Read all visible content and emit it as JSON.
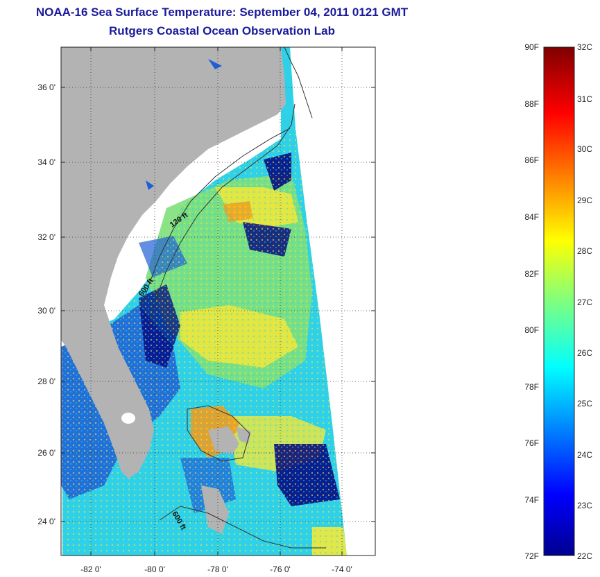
{
  "title": {
    "line1": "NOAA-16 Sea Surface Temperature:  September 04, 2011 0121 GMT",
    "line2": "Rutgers Coastal Ocean Observation Lab"
  },
  "axes": {
    "lat_ticks": [
      "36 0'",
      "34 0'",
      "32 0'",
      "30 0'",
      "28 0'",
      "26 0'",
      "24 0'"
    ],
    "lon_ticks": [
      "-82 0'",
      "-80 0'",
      "-78 0'",
      "-76 0'",
      "-74 0'"
    ],
    "lat_range": [
      23.0,
      37.0
    ],
    "lon_range": [
      -83.0,
      -73.3
    ],
    "grid": "dotted"
  },
  "contours": {
    "label_120": "120 ft",
    "label_600_north": "600 ft",
    "label_600_south": "600 ft"
  },
  "colorbar": {
    "fahrenheit": [
      "90F",
      "88F",
      "86F",
      "84F",
      "82F",
      "80F",
      "78F",
      "76F",
      "74F",
      "72F"
    ],
    "celsius": [
      "32C",
      "31C",
      "30C",
      "29C",
      "28C",
      "27C",
      "26C",
      "25C",
      "24C",
      "23C",
      "22C"
    ],
    "f_range": [
      72,
      90
    ],
    "c_range": [
      22,
      32
    ],
    "colormap": "jet"
  },
  "colors": {
    "land": "#b3b3b3",
    "title": "#1a1a9a",
    "cold": "#000080",
    "cool": "#1f5fd6",
    "cyan": "#2fd1e8",
    "green": "#7fe07a",
    "yellow": "#f2e93a",
    "orange": "#f39b1c",
    "red": "#d81f10"
  }
}
